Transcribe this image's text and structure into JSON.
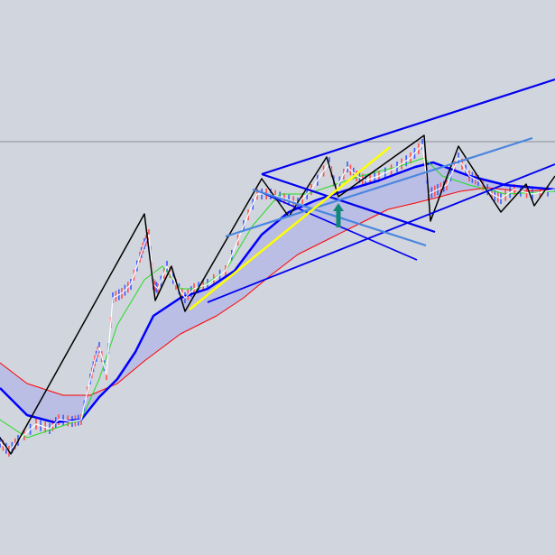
{
  "chart_data": {
    "type": "line",
    "title": "",
    "xlabel": "",
    "ylabel": "",
    "grid": false,
    "background": "#d1d5dd",
    "horizontal_level": {
      "y": 458,
      "color": "#8a8f99"
    },
    "band_fill": {
      "between": [
        "blue_ma",
        "red_ma"
      ],
      "color": "#b4b6e6"
    },
    "series": [
      {
        "id": "red_ma",
        "color": "#ff0000",
        "width": 1,
        "points": [
          [
            0,
            213
          ],
          [
            30,
            190
          ],
          [
            70,
            177
          ],
          [
            100,
            177
          ],
          [
            130,
            190
          ],
          [
            160,
            215
          ],
          [
            200,
            245
          ],
          [
            240,
            265
          ],
          [
            270,
            285
          ],
          [
            300,
            310
          ],
          [
            330,
            333
          ],
          [
            370,
            353
          ],
          [
            400,
            368
          ],
          [
            430,
            383
          ],
          [
            460,
            390
          ],
          [
            480,
            395
          ],
          [
            510,
            403
          ],
          [
            540,
            407
          ],
          [
            580,
            403
          ],
          [
            615,
            405
          ]
        ]
      },
      {
        "id": "blue_ma",
        "color": "#0000ff",
        "width": 2.5,
        "points": [
          [
            0,
            185
          ],
          [
            30,
            155
          ],
          [
            60,
            147
          ],
          [
            90,
            150
          ],
          [
            110,
            175
          ],
          [
            130,
            195
          ],
          [
            150,
            225
          ],
          [
            170,
            265
          ],
          [
            200,
            285
          ],
          [
            230,
            295
          ],
          [
            260,
            315
          ],
          [
            290,
            355
          ],
          [
            320,
            380
          ],
          [
            350,
            393
          ],
          [
            380,
            403
          ],
          [
            420,
            415
          ],
          [
            460,
            430
          ],
          [
            480,
            435
          ],
          [
            520,
            420
          ],
          [
            560,
            410
          ],
          [
            615,
            405
          ]
        ]
      },
      {
        "id": "green_ma",
        "color": "#22dd22",
        "width": 1,
        "points": [
          [
            0,
            150
          ],
          [
            30,
            130
          ],
          [
            60,
            140
          ],
          [
            90,
            150
          ],
          [
            110,
            195
          ],
          [
            130,
            255
          ],
          [
            160,
            305
          ],
          [
            180,
            320
          ],
          [
            200,
            295
          ],
          [
            220,
            295
          ],
          [
            250,
            315
          ],
          [
            280,
            365
          ],
          [
            310,
            400
          ],
          [
            340,
            400
          ],
          [
            370,
            410
          ],
          [
            400,
            420
          ],
          [
            440,
            430
          ],
          [
            470,
            440
          ],
          [
            490,
            420
          ],
          [
            520,
            410
          ],
          [
            560,
            400
          ],
          [
            615,
            403
          ]
        ]
      },
      {
        "id": "price",
        "color": "#ffffff",
        "width": 1.2,
        "points": [
          [
            0,
            125
          ],
          [
            10,
            115
          ],
          [
            20,
            127
          ],
          [
            40,
            145
          ],
          [
            55,
            140
          ],
          [
            65,
            150
          ],
          [
            80,
            148
          ],
          [
            90,
            150
          ],
          [
            100,
            195
          ],
          [
            105,
            215
          ],
          [
            110,
            230
          ],
          [
            118,
            200
          ],
          [
            125,
            285
          ],
          [
            135,
            290
          ],
          [
            145,
            300
          ],
          [
            155,
            330
          ],
          [
            160,
            345
          ],
          [
            165,
            355
          ],
          [
            170,
            300
          ],
          [
            175,
            295
          ],
          [
            185,
            320
          ],
          [
            195,
            300
          ],
          [
            205,
            285
          ],
          [
            215,
            295
          ],
          [
            230,
            300
          ],
          [
            250,
            315
          ],
          [
            270,
            365
          ],
          [
            285,
            400
          ],
          [
            300,
            400
          ],
          [
            315,
            395
          ],
          [
            330,
            390
          ],
          [
            345,
            405
          ],
          [
            365,
            435
          ],
          [
            372,
            405
          ],
          [
            385,
            430
          ],
          [
            395,
            420
          ],
          [
            405,
            415
          ],
          [
            420,
            420
          ],
          [
            440,
            430
          ],
          [
            455,
            440
          ],
          [
            468,
            455
          ],
          [
            475,
            400
          ],
          [
            485,
            405
          ],
          [
            495,
            410
          ],
          [
            508,
            440
          ],
          [
            520,
            420
          ],
          [
            530,
            415
          ],
          [
            545,
            400
          ],
          [
            555,
            395
          ],
          [
            570,
            405
          ],
          [
            590,
            400
          ],
          [
            615,
            405
          ]
        ]
      },
      {
        "id": "zigzag",
        "color": "#000000",
        "width": 1.5,
        "points": [
          [
            0,
            130
          ],
          [
            12,
            112
          ],
          [
            160,
            378
          ],
          [
            172,
            282
          ],
          [
            190,
            320
          ],
          [
            205,
            270
          ],
          [
            290,
            417
          ],
          [
            320,
            375
          ],
          [
            362,
            441
          ],
          [
            375,
            397
          ],
          [
            470,
            465
          ],
          [
            477,
            370
          ],
          [
            508,
            453
          ],
          [
            555,
            380
          ],
          [
            583,
            411
          ],
          [
            592,
            387
          ],
          [
            615,
            420
          ]
        ]
      }
    ],
    "trendlines": [
      {
        "color": "#0000ee",
        "width": 2.2,
        "from": [
          290,
          422
        ],
        "to": [
          615,
          527
        ]
      },
      {
        "color": "#0000ee",
        "width": 2.2,
        "from": [
          290,
          422
        ],
        "to": [
          482,
          358
        ]
      },
      {
        "color": "#0000ee",
        "width": 1.6,
        "from": [
          282,
          405
        ],
        "to": [
          462,
          327
        ]
      },
      {
        "color": "#0000ee",
        "width": 1.8,
        "from": [
          230,
          280
        ],
        "to": [
          615,
          433
        ]
      },
      {
        "color": "#4a86e0",
        "width": 2.2,
        "from": [
          250,
          353
        ],
        "to": [
          590,
          462
        ]
      },
      {
        "color": "#4a86e0",
        "width": 2.2,
        "from": [
          280,
          405
        ],
        "to": [
          472,
          343
        ]
      },
      {
        "color": "#ffff00",
        "width": 2.5,
        "from": [
          210,
          272
        ],
        "to": [
          432,
          452
        ]
      }
    ],
    "markers": [
      {
        "type": "arrow-up",
        "color": "#118877",
        "at": [
          375,
          390
        ]
      }
    ]
  }
}
